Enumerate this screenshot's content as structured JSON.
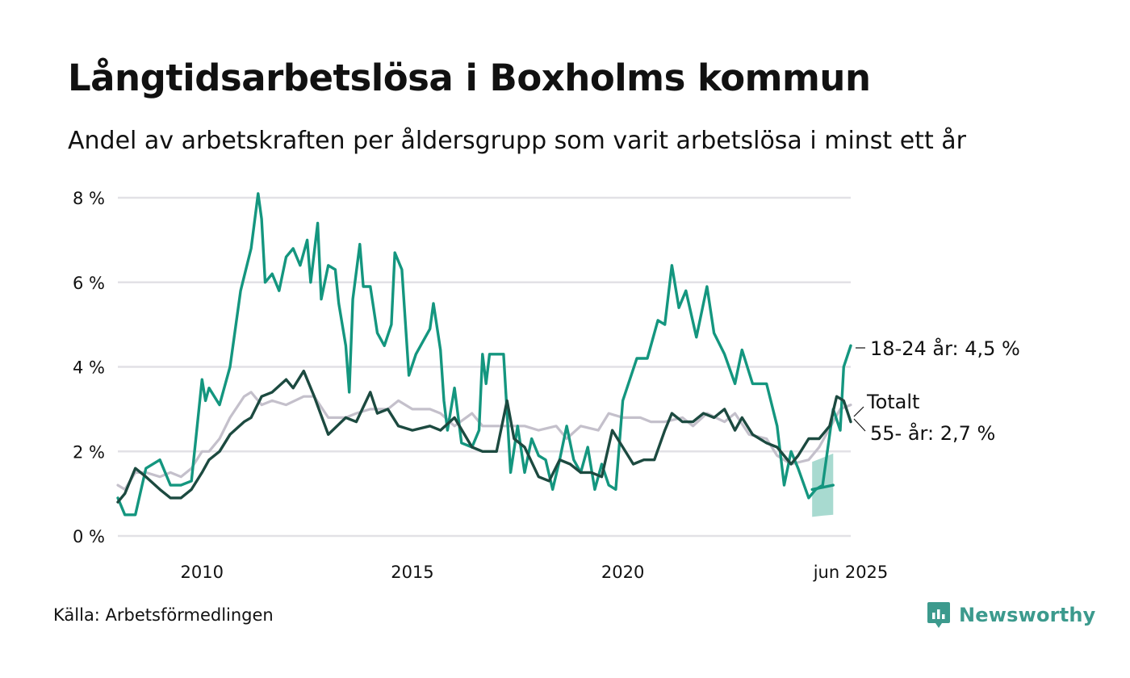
{
  "header": {
    "title": "Långtidsarbetslösa i Boxholms kommun",
    "subtitle": "Andel av arbetskraften per åldersgrupp som varit arbetslösa i minst ett år"
  },
  "footer": {
    "source": "Källa: Arbetsförmedlingen",
    "brand": "Newsworthy"
  },
  "colors": {
    "youth": "#14967f",
    "older": "#1c4a40",
    "total": "#c4c0cb",
    "band": "#9fd6cb",
    "grid": "#e2e1e6",
    "brand": "#3c9a8d"
  },
  "chart_data": {
    "type": "line",
    "x_axis": {
      "type": "date",
      "range": [
        "2008-01",
        "2025-06"
      ],
      "ticks": [
        "2010",
        "2015",
        "2020",
        "jun 2025"
      ]
    },
    "y_axis": {
      "range": [
        0,
        8
      ],
      "ticks": [
        "0 %",
        "2 %",
        "4 %",
        "6 %",
        "8 %"
      ],
      "unit": "%"
    },
    "grid": "horizontal",
    "end_labels": {
      "youth": "18-24 år: 4,5 %",
      "total": "Totalt",
      "older": "55- år: 2,7 %"
    },
    "series": [
      {
        "key": "total",
        "points": [
          [
            "2008-01",
            1.2
          ],
          [
            "2008-03",
            1.1
          ],
          [
            "2008-06",
            1.5
          ],
          [
            "2008-09",
            1.5
          ],
          [
            "2009-01",
            1.4
          ],
          [
            "2009-04",
            1.5
          ],
          [
            "2009-07",
            1.4
          ],
          [
            "2009-10",
            1.6
          ],
          [
            "2010-01",
            2.0
          ],
          [
            "2010-03",
            2.0
          ],
          [
            "2010-06",
            2.3
          ],
          [
            "2010-09",
            2.8
          ],
          [
            "2011-01",
            3.3
          ],
          [
            "2011-03",
            3.4
          ],
          [
            "2011-06",
            3.1
          ],
          [
            "2011-09",
            3.2
          ],
          [
            "2012-01",
            3.1
          ],
          [
            "2012-06",
            3.3
          ],
          [
            "2012-09",
            3.3
          ],
          [
            "2013-01",
            2.8
          ],
          [
            "2013-06",
            2.8
          ],
          [
            "2013-09",
            2.9
          ],
          [
            "2014-01",
            3.0
          ],
          [
            "2014-06",
            3.0
          ],
          [
            "2014-09",
            3.2
          ],
          [
            "2015-01",
            3.0
          ],
          [
            "2015-06",
            3.0
          ],
          [
            "2015-09",
            2.9
          ],
          [
            "2016-01",
            2.6
          ],
          [
            "2016-06",
            2.9
          ],
          [
            "2016-09",
            2.6
          ],
          [
            "2017-01",
            2.6
          ],
          [
            "2017-06",
            2.6
          ],
          [
            "2017-09",
            2.6
          ],
          [
            "2018-01",
            2.5
          ],
          [
            "2018-06",
            2.6
          ],
          [
            "2018-09",
            2.3
          ],
          [
            "2019-01",
            2.6
          ],
          [
            "2019-06",
            2.5
          ],
          [
            "2019-09",
            2.9
          ],
          [
            "2020-01",
            2.8
          ],
          [
            "2020-06",
            2.8
          ],
          [
            "2020-09",
            2.7
          ],
          [
            "2021-01",
            2.7
          ],
          [
            "2021-06",
            2.8
          ],
          [
            "2021-09",
            2.6
          ],
          [
            "2022-01",
            2.9
          ],
          [
            "2022-06",
            2.7
          ],
          [
            "2022-09",
            2.9
          ],
          [
            "2023-01",
            2.4
          ],
          [
            "2023-06",
            2.3
          ],
          [
            "2023-09",
            1.9
          ],
          [
            "2024-01",
            1.7
          ],
          [
            "2024-06",
            1.8
          ],
          [
            "2024-09",
            2.1
          ],
          [
            "2025-01",
            2.7
          ],
          [
            "2025-03",
            3.0
          ],
          [
            "2025-06",
            3.1
          ]
        ]
      },
      {
        "key": "youth",
        "points": [
          [
            "2008-01",
            0.9
          ],
          [
            "2008-03",
            0.5
          ],
          [
            "2008-06",
            0.5
          ],
          [
            "2008-09",
            1.6
          ],
          [
            "2009-01",
            1.8
          ],
          [
            "2009-04",
            1.2
          ],
          [
            "2009-07",
            1.2
          ],
          [
            "2009-10",
            1.3
          ],
          [
            "2010-01",
            3.7
          ],
          [
            "2010-02",
            3.2
          ],
          [
            "2010-03",
            3.5
          ],
          [
            "2010-06",
            3.1
          ],
          [
            "2010-09",
            4.0
          ],
          [
            "2010-12",
            5.8
          ],
          [
            "2011-03",
            6.8
          ],
          [
            "2011-05",
            8.1
          ],
          [
            "2011-06",
            7.5
          ],
          [
            "2011-07",
            6.0
          ],
          [
            "2011-09",
            6.2
          ],
          [
            "2011-11",
            5.8
          ],
          [
            "2012-01",
            6.6
          ],
          [
            "2012-03",
            6.8
          ],
          [
            "2012-05",
            6.4
          ],
          [
            "2012-07",
            7.0
          ],
          [
            "2012-08",
            6.0
          ],
          [
            "2012-10",
            7.4
          ],
          [
            "2012-11",
            5.6
          ],
          [
            "2013-01",
            6.4
          ],
          [
            "2013-03",
            6.3
          ],
          [
            "2013-04",
            5.5
          ],
          [
            "2013-06",
            4.5
          ],
          [
            "2013-07",
            3.4
          ],
          [
            "2013-08",
            5.6
          ],
          [
            "2013-10",
            6.9
          ],
          [
            "2013-11",
            5.9
          ],
          [
            "2014-01",
            5.9
          ],
          [
            "2014-03",
            4.8
          ],
          [
            "2014-05",
            4.5
          ],
          [
            "2014-07",
            5.0
          ],
          [
            "2014-08",
            6.7
          ],
          [
            "2014-10",
            6.3
          ],
          [
            "2014-12",
            3.8
          ],
          [
            "2015-02",
            4.3
          ],
          [
            "2015-04",
            4.6
          ],
          [
            "2015-06",
            4.9
          ],
          [
            "2015-07",
            5.5
          ],
          [
            "2015-09",
            4.4
          ],
          [
            "2015-10",
            3.2
          ],
          [
            "2015-11",
            2.5
          ],
          [
            "2016-01",
            3.5
          ],
          [
            "2016-03",
            2.2
          ],
          [
            "2016-06",
            2.1
          ],
          [
            "2016-08",
            2.5
          ],
          [
            "2016-09",
            4.3
          ],
          [
            "2016-10",
            3.6
          ],
          [
            "2016-11",
            4.3
          ],
          [
            "2017-03",
            4.3
          ],
          [
            "2017-05",
            1.5
          ],
          [
            "2017-07",
            2.6
          ],
          [
            "2017-09",
            1.5
          ],
          [
            "2017-11",
            2.3
          ],
          [
            "2018-01",
            1.9
          ],
          [
            "2018-03",
            1.8
          ],
          [
            "2018-05",
            1.1
          ],
          [
            "2018-07",
            1.8
          ],
          [
            "2018-09",
            2.6
          ],
          [
            "2018-11",
            1.8
          ],
          [
            "2019-01",
            1.5
          ],
          [
            "2019-03",
            2.1
          ],
          [
            "2019-05",
            1.1
          ],
          [
            "2019-07",
            1.7
          ],
          [
            "2019-09",
            1.2
          ],
          [
            "2019-11",
            1.1
          ],
          [
            "2020-01",
            3.2
          ],
          [
            "2020-05",
            4.2
          ],
          [
            "2020-08",
            4.2
          ],
          [
            "2020-11",
            5.1
          ],
          [
            "2021-01",
            5.0
          ],
          [
            "2021-03",
            6.4
          ],
          [
            "2021-05",
            5.4
          ],
          [
            "2021-07",
            5.8
          ],
          [
            "2021-10",
            4.7
          ],
          [
            "2022-01",
            5.9
          ],
          [
            "2022-03",
            4.8
          ],
          [
            "2022-06",
            4.3
          ],
          [
            "2022-09",
            3.6
          ],
          [
            "2022-11",
            4.4
          ],
          [
            "2023-02",
            3.6
          ],
          [
            "2023-06",
            3.6
          ],
          [
            "2023-09",
            2.6
          ],
          [
            "2023-11",
            1.2
          ],
          [
            "2024-01",
            2.0
          ],
          [
            "2024-03",
            1.6
          ],
          [
            "2024-06",
            0.9
          ],
          [
            "2024-08",
            1.1
          ],
          [
            "2024-10",
            1.2
          ],
          [
            "2025-01",
            3.0
          ],
          [
            "2025-03",
            2.5
          ],
          [
            "2025-04",
            4.0
          ],
          [
            "2025-06",
            4.5
          ]
        ]
      },
      {
        "key": "older",
        "points": [
          [
            "2008-01",
            0.8
          ],
          [
            "2008-03",
            1.0
          ],
          [
            "2008-06",
            1.6
          ],
          [
            "2008-09",
            1.4
          ],
          [
            "2009-01",
            1.1
          ],
          [
            "2009-04",
            0.9
          ],
          [
            "2009-07",
            0.9
          ],
          [
            "2009-10",
            1.1
          ],
          [
            "2010-01",
            1.5
          ],
          [
            "2010-03",
            1.8
          ],
          [
            "2010-06",
            2.0
          ],
          [
            "2010-09",
            2.4
          ],
          [
            "2011-01",
            2.7
          ],
          [
            "2011-03",
            2.8
          ],
          [
            "2011-06",
            3.3
          ],
          [
            "2011-09",
            3.4
          ],
          [
            "2012-01",
            3.7
          ],
          [
            "2012-03",
            3.5
          ],
          [
            "2012-06",
            3.9
          ],
          [
            "2012-09",
            3.3
          ],
          [
            "2013-01",
            2.4
          ],
          [
            "2013-06",
            2.8
          ],
          [
            "2013-09",
            2.7
          ],
          [
            "2014-01",
            3.4
          ],
          [
            "2014-03",
            2.9
          ],
          [
            "2014-06",
            3.0
          ],
          [
            "2014-09",
            2.6
          ],
          [
            "2015-01",
            2.5
          ],
          [
            "2015-06",
            2.6
          ],
          [
            "2015-09",
            2.5
          ],
          [
            "2016-01",
            2.8
          ],
          [
            "2016-06",
            2.1
          ],
          [
            "2016-09",
            2.0
          ],
          [
            "2017-01",
            2.0
          ],
          [
            "2017-04",
            3.2
          ],
          [
            "2017-06",
            2.3
          ],
          [
            "2017-09",
            2.1
          ],
          [
            "2018-01",
            1.4
          ],
          [
            "2018-04",
            1.3
          ],
          [
            "2018-07",
            1.8
          ],
          [
            "2018-10",
            1.7
          ],
          [
            "2019-01",
            1.5
          ],
          [
            "2019-04",
            1.5
          ],
          [
            "2019-07",
            1.4
          ],
          [
            "2019-10",
            2.5
          ],
          [
            "2020-01",
            2.1
          ],
          [
            "2020-04",
            1.7
          ],
          [
            "2020-07",
            1.8
          ],
          [
            "2020-10",
            1.8
          ],
          [
            "2021-01",
            2.5
          ],
          [
            "2021-03",
            2.9
          ],
          [
            "2021-06",
            2.7
          ],
          [
            "2021-09",
            2.7
          ],
          [
            "2021-12",
            2.9
          ],
          [
            "2022-03",
            2.8
          ],
          [
            "2022-06",
            3.0
          ],
          [
            "2022-09",
            2.5
          ],
          [
            "2022-11",
            2.8
          ],
          [
            "2023-02",
            2.4
          ],
          [
            "2023-06",
            2.2
          ],
          [
            "2023-09",
            2.1
          ],
          [
            "2024-01",
            1.7
          ],
          [
            "2024-03",
            1.9
          ],
          [
            "2024-06",
            2.3
          ],
          [
            "2024-09",
            2.3
          ],
          [
            "2024-12",
            2.6
          ],
          [
            "2025-02",
            3.3
          ],
          [
            "2025-04",
            3.2
          ],
          [
            "2025-06",
            2.7
          ]
        ]
      }
    ],
    "band": {
      "series": "youth",
      "x_range": [
        "2024-06",
        "2025-01"
      ],
      "center": [
        [
          "2024-07",
          1.1
        ],
        [
          "2024-10",
          1.15
        ],
        [
          "2025-01",
          1.2
        ]
      ],
      "lower": [
        [
          "2024-07",
          0.45
        ],
        [
          "2024-10",
          0.48
        ],
        [
          "2025-01",
          0.5
        ]
      ],
      "upper": [
        [
          "2024-07",
          1.75
        ],
        [
          "2024-10",
          1.85
        ],
        [
          "2025-01",
          1.95
        ]
      ]
    }
  }
}
